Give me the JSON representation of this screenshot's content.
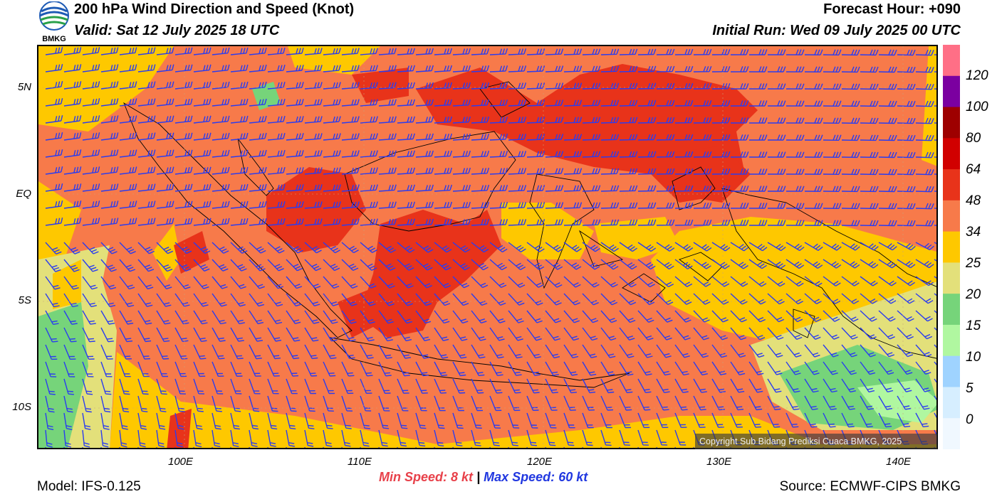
{
  "header": {
    "title": "200 hPa Wind Direction and Speed (Knot)",
    "valid": "Valid: Sat 12 July 2025 18 UTC",
    "forecast_hour": "Forecast Hour: +090",
    "initial_run": "Initial Run: Wed 09 July 2025 00 UTC",
    "logo_text": "BMKG"
  },
  "axes": {
    "lat_labels": [
      "5N",
      "EQ",
      "5S",
      "10S"
    ],
    "lon_labels": [
      "100E",
      "110E",
      "120E",
      "130E",
      "140E"
    ]
  },
  "colorbar": {
    "labels": [
      "120",
      "100",
      "80",
      "64",
      "48",
      "34",
      "25",
      "20",
      "15",
      "10",
      "5",
      "0"
    ],
    "colors": [
      "#ff6f86",
      "#7b00a0",
      "#9e0000",
      "#d10000",
      "#e8331a",
      "#f77a4a",
      "#fec800",
      "#e3e07a",
      "#76d47a",
      "#b0f7a0",
      "#9fd3ff",
      "#d6eeff",
      "#f0f8ff"
    ]
  },
  "stats": {
    "min_label": "Min Speed:",
    "min_value": "8 kt",
    "separator": "|",
    "max_label": "Max Speed:",
    "max_value": "60 kt"
  },
  "footer": {
    "model": "Model: IFS-0.125",
    "source": "Source: ECMWF-CIPS BMKG",
    "copyright": "Copyright Sub Bidang Prediksi Cuaca BMKG, 2025"
  },
  "map_colors": {
    "background": "#f77a4a",
    "strong": "#e8331a",
    "moderate": "#fec800",
    "weak": "#e3e07a",
    "light": "#76d47a",
    "barb": "#2a3cf0",
    "coast": "#000000"
  }
}
